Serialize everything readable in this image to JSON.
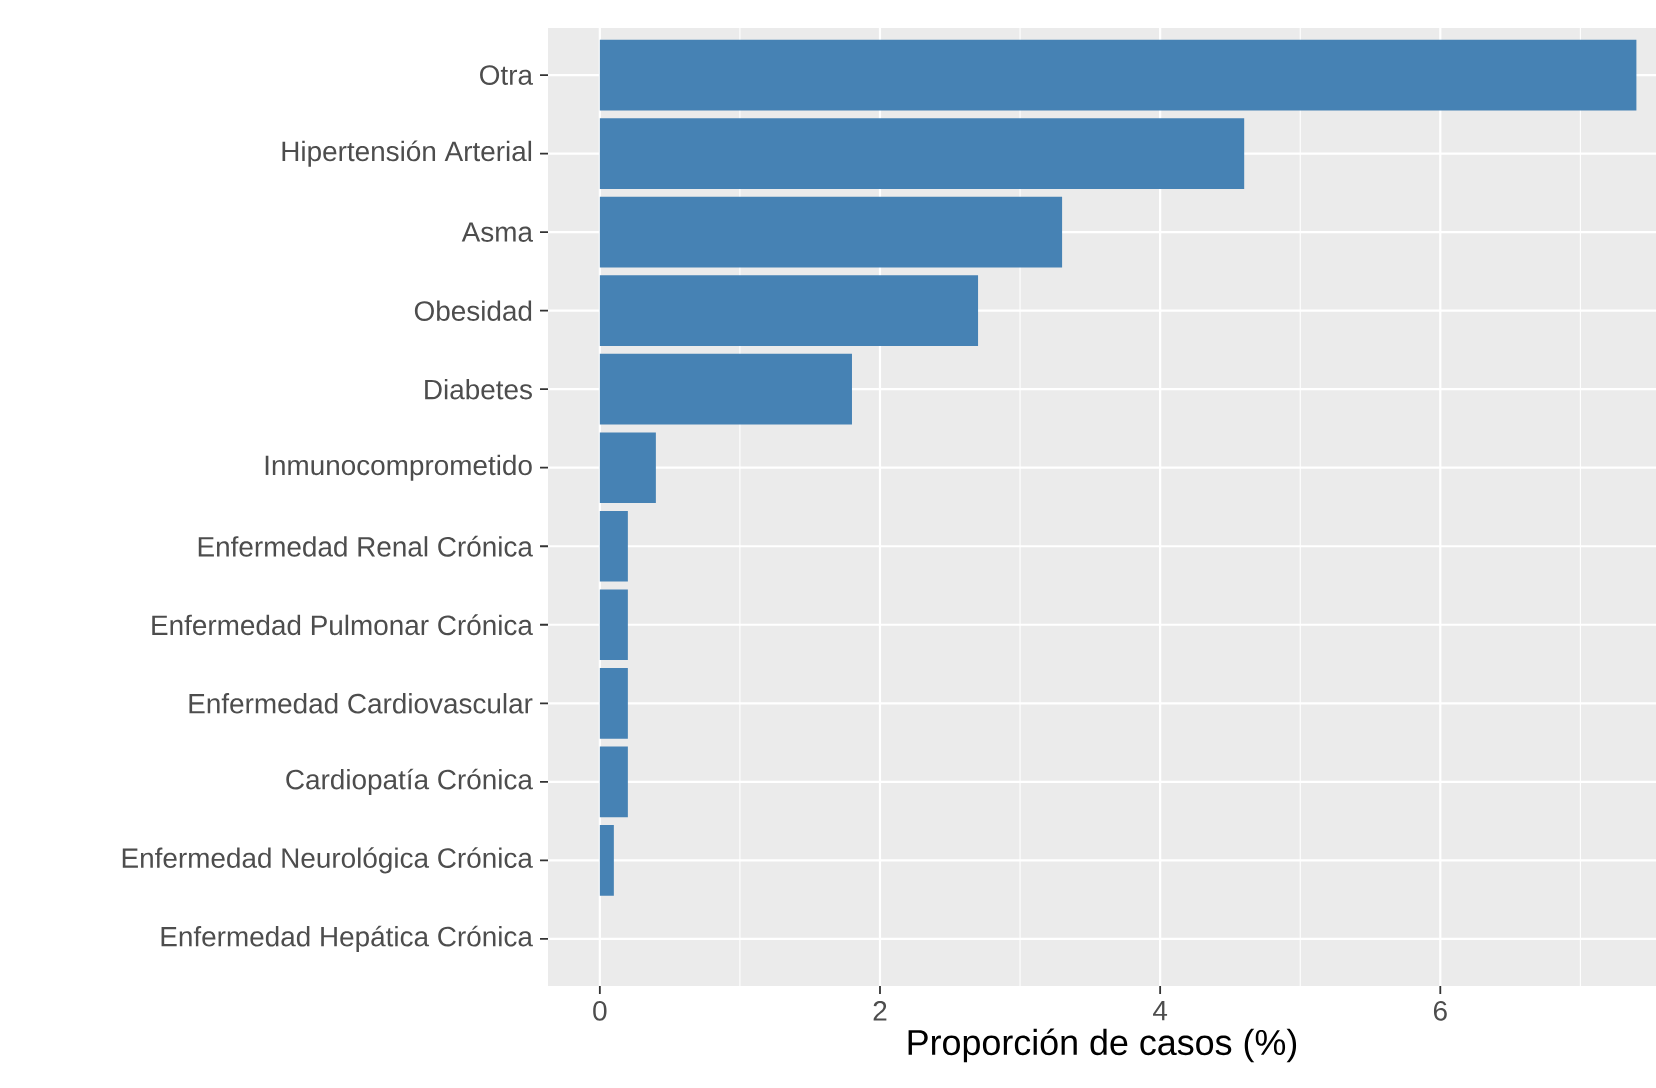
{
  "chart_data": {
    "type": "bar",
    "orientation": "horizontal",
    "categories": [
      "Otra",
      "Hipertensión Arterial",
      "Asma",
      "Obesidad",
      "Diabetes",
      "Inmunocomprometido",
      "Enfermedad Renal Crónica",
      "Enfermedad Pulmonar Crónica",
      "Enfermedad Cardiovascular",
      "Cardiopatía Crónica",
      "Enfermedad Neurológica Crónica",
      "Enfermedad Hepática Crónica"
    ],
    "values": [
      7.4,
      4.6,
      3.3,
      2.7,
      1.8,
      0.4,
      0.2,
      0.2,
      0.2,
      0.2,
      0.1,
      0
    ],
    "color": "#4682b4",
    "xlabel": "Proporción de casos (%)",
    "xlim": [
      -0.37,
      7.54
    ],
    "xticks": [
      0,
      2,
      4,
      6
    ],
    "grid": true
  }
}
